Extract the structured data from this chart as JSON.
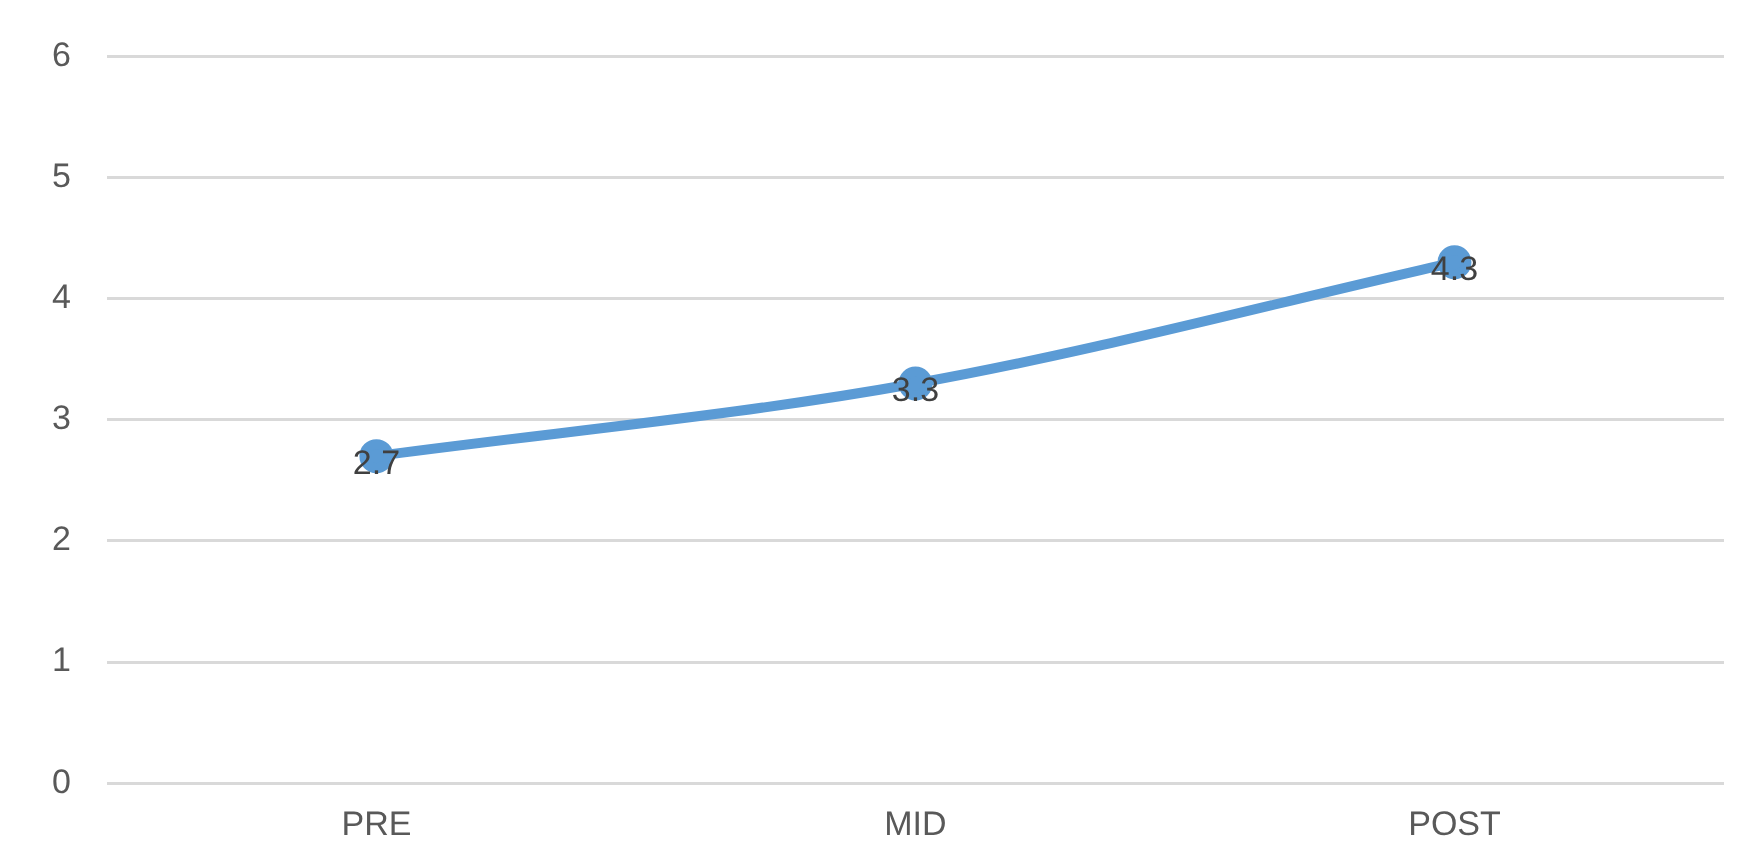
{
  "chart_data": {
    "type": "line",
    "categories": [
      "PRE",
      "MID",
      "POST"
    ],
    "series": [
      {
        "color": "#5b9bd5",
        "values": [
          2.7,
          3.3,
          4.3
        ]
      }
    ],
    "ylim": [
      0,
      6
    ],
    "yticks": [
      0,
      1,
      2,
      3,
      4,
      5,
      6
    ],
    "grid": "y",
    "legend": false,
    "marker": "circle",
    "data_labels": true
  }
}
